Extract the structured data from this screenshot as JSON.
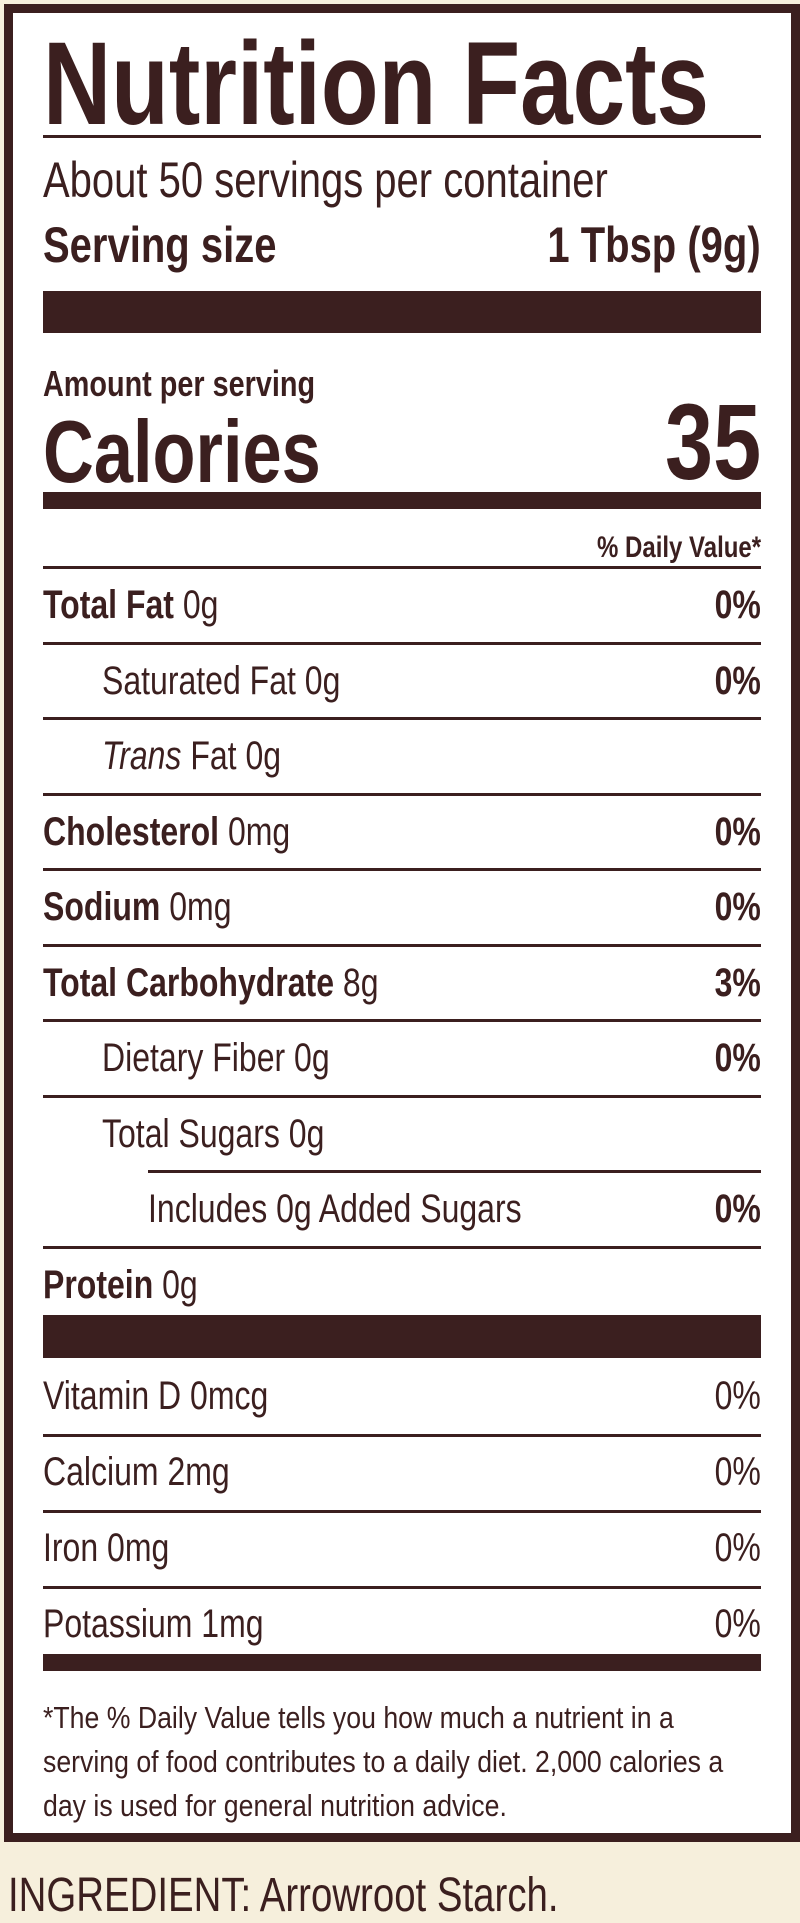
{
  "title": "Nutrition Facts",
  "servings_per_container": "About 50 servings per container",
  "serving_size": {
    "label": "Serving size",
    "value": "1 Tbsp (9g)"
  },
  "amount_per_serving": "Amount per serving",
  "calories": {
    "label": "Calories",
    "value": "35"
  },
  "daily_value_header": "% Daily Value*",
  "nutrients": [
    {
      "name": "Total Fat",
      "amount": "0g",
      "dv": "0%"
    },
    {
      "name": "Saturated Fat 0g",
      "dv": "0%"
    },
    {
      "name_italic": "Trans",
      "name": "Fat 0g",
      "dv": ""
    },
    {
      "name": "Cholesterol",
      "amount": "0mg",
      "dv": "0%"
    },
    {
      "name": "Sodium",
      "amount": "0mg",
      "dv": "0%"
    },
    {
      "name": "Total Carbohydrate",
      "amount": "8g",
      "dv": "3%"
    },
    {
      "name": "Dietary Fiber 0g",
      "dv": "0%"
    },
    {
      "name": "Total Sugars 0g",
      "dv": ""
    },
    {
      "name": "Includes 0g Added Sugars",
      "dv": "0%"
    },
    {
      "name": "Protein",
      "amount": "0g",
      "dv": ""
    }
  ],
  "vitamins": [
    {
      "name": "Vitamin D 0mcg",
      "dv": "0%"
    },
    {
      "name": "Calcium 2mg",
      "dv": "0%"
    },
    {
      "name": "Iron 0mg",
      "dv": "0%"
    },
    {
      "name": "Potassium 1mg",
      "dv": "0%"
    }
  ],
  "footnote": "*The % Daily Value tells you how much a nutrient in a serving of food contributes to a daily diet. 2,000 calories a day is used for general nutrition advice.",
  "ingredients": "INGREDIENT: Arrowroot Starch.",
  "colors": {
    "text": "#3b1f1f",
    "background": "#f6efdc",
    "panel": "#ffffff"
  }
}
